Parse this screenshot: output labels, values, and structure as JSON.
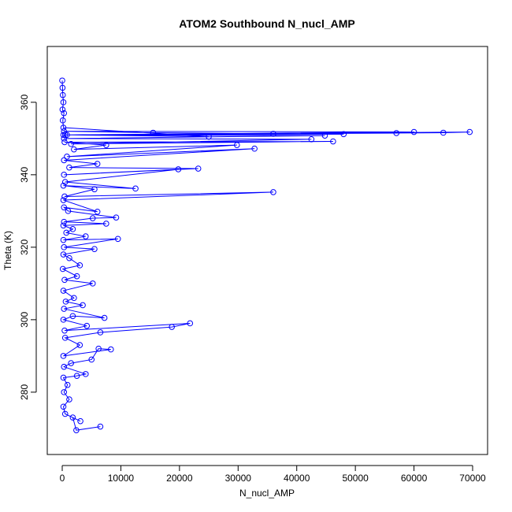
{
  "chart_data": {
    "type": "line",
    "title": "ATOM2 Southbound N_nucl_AMP",
    "x_label": "N_nucl_AMP",
    "y_label": "Theta (K)",
    "x": [
      6500,
      2400,
      1800,
      3100,
      500,
      200,
      1200,
      300,
      900,
      200,
      2500,
      4000,
      300,
      1500,
      5000,
      6200,
      8300,
      200,
      3000,
      500,
      6500,
      18700,
      21800,
      400,
      4200,
      200,
      1800,
      7200,
      300,
      3500,
      600,
      2000,
      200,
      5200,
      400,
      2500,
      100,
      3000,
      1200,
      200,
      5500,
      300,
      9500,
      200,
      4000,
      700,
      1800,
      200,
      7500,
      300,
      5200,
      9200,
      1000,
      300,
      6000,
      200,
      36000,
      400,
      5500,
      200,
      12500,
      500,
      19800,
      300,
      23200,
      1200,
      6000,
      300,
      32800,
      800,
      29800,
      2000,
      7500,
      400,
      46200,
      1500,
      42500,
      300,
      44800,
      200,
      57000,
      65000,
      69500,
      800,
      60000,
      300,
      15500,
      36000,
      48000,
      500,
      25000,
      200,
      100,
      300,
      50,
      200,
      100,
      50,
      0
    ],
    "series": [
      {
        "name": "N_nucl_AMP",
        "color": "#0000ff",
        "values": [
          270.5,
          269.5,
          273,
          272,
          274,
          276,
          278,
          280,
          282,
          284,
          284.5,
          285,
          287,
          288,
          289,
          292,
          291.8,
          290,
          293,
          295,
          296.5,
          298,
          299,
          297,
          298.3,
          300,
          301,
          300.5,
          303,
          304,
          305,
          306,
          308,
          310,
          311,
          312,
          314,
          315,
          317,
          318,
          319.5,
          320,
          322.3,
          322,
          323,
          324,
          325,
          326,
          326.5,
          327,
          328,
          328.2,
          330,
          331,
          329.8,
          333,
          335.2,
          334,
          336,
          337,
          336.2,
          338,
          341.5,
          340,
          341.7,
          342,
          343,
          344,
          347.2,
          345,
          348.2,
          347,
          348.2,
          349,
          349.2,
          348.5,
          349.8,
          350,
          350.8,
          351,
          351.5,
          351.6,
          351.8,
          351,
          351.8,
          352,
          351.6,
          351.3,
          351.2,
          351,
          350.5,
          353,
          355,
          357,
          358,
          360,
          362,
          364,
          366
        ]
      }
    ],
    "xlim": [
      -2553,
      72553
    ],
    "ylim": [
      262.8,
      375.4
    ],
    "xticks": [
      0,
      10000,
      20000,
      30000,
      40000,
      50000,
      60000,
      70000
    ],
    "yticks": [
      280,
      300,
      320,
      340,
      360
    ]
  }
}
